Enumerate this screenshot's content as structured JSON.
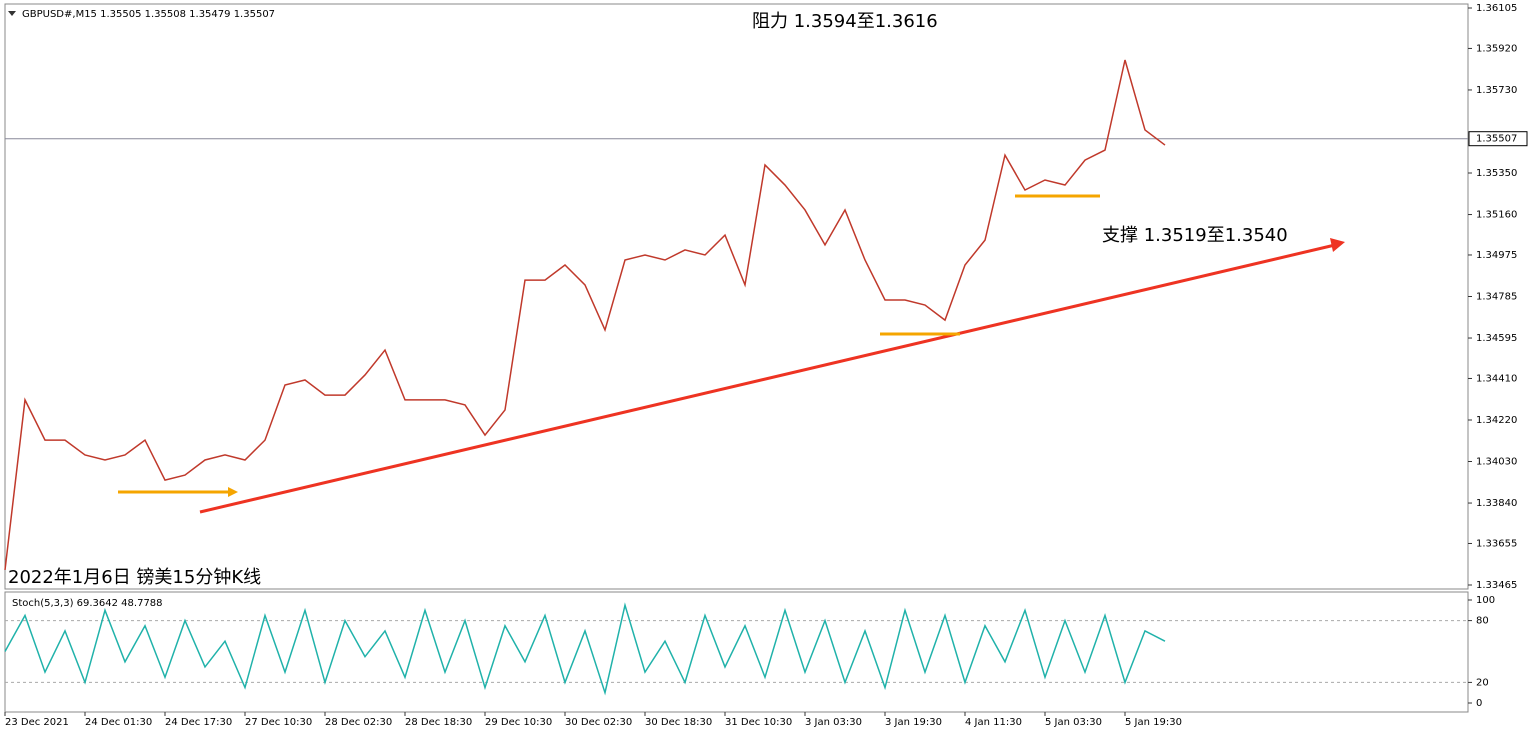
{
  "chart_data": [
    {
      "type": "line",
      "header": "GBPUSD#,M15  1.35505 1.35508 1.35479 1.35507",
      "annotations": [
        "阻力 1.3594至1.3616",
        "支撑 1.3519至1.3540",
        "2022年1月6日 镑美15分钟K线"
      ],
      "categories": [
        "23 Dec 2021",
        null,
        null,
        null,
        "24 Dec 01:30",
        null,
        null,
        null,
        "24 Dec 17:30",
        null,
        null,
        null,
        "27 Dec 10:30",
        null,
        null,
        null,
        "28 Dec 02:30",
        null,
        null,
        null,
        "28 Dec 18:30",
        null,
        null,
        null,
        "29 Dec 10:30",
        null,
        null,
        null,
        "30 Dec 02:30",
        null,
        null,
        null,
        "30 Dec 18:30",
        null,
        null,
        null,
        "31 Dec 10:30",
        null,
        null,
        null,
        "3 Jan 03:30",
        null,
        null,
        null,
        "3 Jan 19:30",
        null,
        null,
        null,
        "4 Jan 11:30",
        null,
        null,
        null,
        "5 Jan 03:30",
        null,
        null,
        null,
        "5 Jan 19:30",
        null,
        null
      ],
      "series": [
        {
          "name": "GBPUSD#,M15",
          "color": "#c0392b",
          "values": [
            1.33534,
            1.34312,
            1.34128,
            1.34128,
            1.3406,
            1.34037,
            1.3406,
            1.34128,
            1.33945,
            1.33968,
            1.34037,
            1.3406,
            1.34037,
            1.34128,
            1.3438,
            1.34403,
            1.34334,
            1.34334,
            1.34426,
            1.3454,
            1.34312,
            1.34312,
            1.34312,
            1.34289,
            1.34151,
            1.34266,
            1.3486,
            1.3486,
            1.34929,
            1.34838,
            1.34632,
            1.34952,
            1.34975,
            1.34952,
            1.34998,
            1.34975,
            1.35066,
            1.34838,
            1.35387,
            1.35295,
            1.35181,
            1.35021,
            1.35181,
            1.34952,
            1.34769,
            1.34769,
            1.34746,
            1.34677,
            1.34929,
            1.35043,
            1.35432,
            1.35272,
            1.35318,
            1.35295,
            1.35409,
            1.35455,
            1.35867,
            1.35547,
            1.35478
          ]
        }
      ],
      "current_price": 1.35507,
      "ylim": [
        1.33465,
        1.36105
      ],
      "yticks": [
        {
          "value": 1.36105,
          "label": "1.36105"
        },
        {
          "value": 1.3592,
          "label": "1.35920"
        },
        {
          "value": 1.3573,
          "label": "1.35730"
        },
        {
          "value": 1.3535,
          "label": "1.35350"
        },
        {
          "value": 1.3516,
          "label": "1.35160"
        },
        {
          "value": 1.34975,
          "label": "1.34975"
        },
        {
          "value": 1.34785,
          "label": "1.34785"
        },
        {
          "value": 1.34595,
          "label": "1.34595"
        },
        {
          "value": 1.3441,
          "label": "1.34410"
        },
        {
          "value": 1.3422,
          "label": "1.34220"
        },
        {
          "value": 1.3403,
          "label": "1.34030"
        },
        {
          "value": 1.3384,
          "label": "1.33840"
        },
        {
          "value": 1.33655,
          "label": "1.33655"
        },
        {
          "value": 1.33465,
          "label": "1.33465"
        }
      ]
    },
    {
      "type": "line",
      "title": "Stoch(5,3,3) 69.3642 48.7788",
      "series": [
        {
          "name": "Stoch",
          "color": "#20b2aa",
          "values": [
            50,
            85,
            30,
            70,
            20,
            90,
            40,
            75,
            25,
            80,
            35,
            60,
            15,
            85,
            30,
            90,
            20,
            80,
            45,
            70,
            25,
            90,
            30,
            80,
            15,
            75,
            40,
            85,
            20,
            70,
            10,
            95,
            30,
            60,
            20,
            85,
            35,
            75,
            25,
            90,
            30,
            80,
            20,
            70,
            15,
            90,
            30,
            85,
            20,
            75,
            40,
            90,
            25,
            80,
            30,
            85,
            20,
            70,
            60
          ]
        }
      ],
      "ylim": [
        0,
        100
      ],
      "yticks": [
        100,
        80,
        20,
        0
      ]
    }
  ]
}
